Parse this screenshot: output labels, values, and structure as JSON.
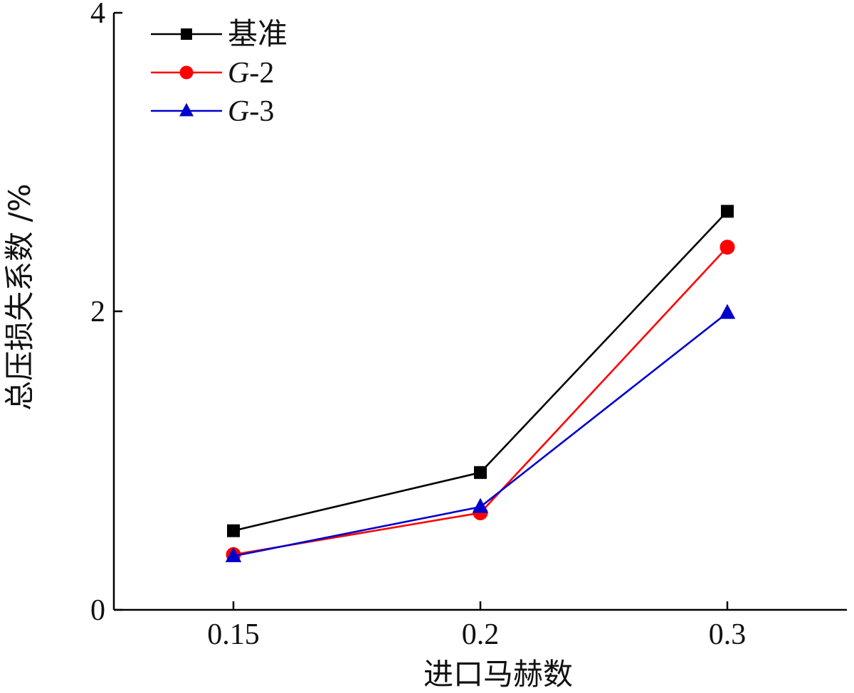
{
  "chart_data": {
    "type": "line",
    "xlabel": "进口马赫数",
    "ylabel": "总压损失系数 /%",
    "categories": [
      "0.15",
      "0.2",
      "0.3"
    ],
    "x": [
      0.15,
      0.2,
      0.3
    ],
    "ylim": [
      0,
      4
    ],
    "yticks": [
      0,
      2,
      4
    ],
    "grid": false,
    "legend_position": "top-left",
    "series": [
      {
        "name": "基准",
        "name_prefix": "",
        "name_suffix": "基准",
        "color": "#000000",
        "marker": "square",
        "values": [
          0.53,
          0.92,
          2.67
        ]
      },
      {
        "name": "G-2",
        "name_prefix": "G",
        "name_suffix": "-2",
        "color": "#ff0000",
        "marker": "circle",
        "values": [
          0.37,
          0.65,
          2.43
        ]
      },
      {
        "name": "G-3",
        "name_prefix": "G",
        "name_suffix": "-3",
        "color": "#0000cc",
        "marker": "triangle",
        "values": [
          0.36,
          0.69,
          1.99
        ]
      }
    ]
  }
}
